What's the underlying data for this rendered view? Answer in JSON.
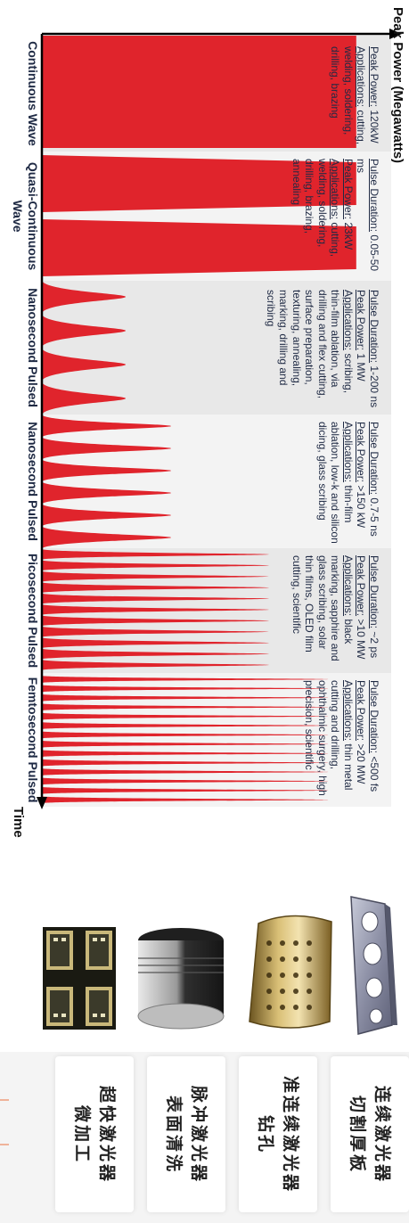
{
  "diagram": {
    "y_axis_title": "Peak Power (Megawatts)",
    "x_axis_title": "Time",
    "columns": [
      {
        "name": "Continuous Wave",
        "lines": [
          {
            "label": "Peak Power:",
            "value": " 120kW"
          },
          {
            "label": "Applications:",
            "value": " cutting, welding, soldering, drilling, brazing"
          }
        ]
      },
      {
        "name": "Quasi-Continuous Wave",
        "lines": [
          {
            "label": "Pulse Duration:",
            "value": " 0.05-50 ms"
          },
          {
            "label": "Peak Power:",
            "value": " 23kW"
          },
          {
            "label": "Applications:",
            "value": " cutting, welding, soldering, drilling, brazing, annealing"
          }
        ]
      },
      {
        "name": "Nanosecond Pulsed",
        "lines": [
          {
            "label": "Pulse Duration:",
            "value": " 1-200 ns"
          },
          {
            "label": "Peak Power:",
            "value": " 1 MW"
          },
          {
            "label": "Applications:",
            "value": " scribing, thin-film ablation, via drilling and flex cutting, surface preparation, texturing, annealing, marking, drilling and scribing"
          }
        ]
      },
      {
        "name": "Nanosecond Pulsed",
        "lines": [
          {
            "label": "Pulse Duration:",
            "value": " 0.7-5 ns"
          },
          {
            "label": "Peak Power:",
            "value": " >150 kW"
          },
          {
            "label": "Applications:",
            "value": " thin-film ablation, low-k and silicon dicing, glass scribing"
          }
        ]
      },
      {
        "name": "Picosecond Pulsed",
        "lines": [
          {
            "label": "Pulse Duration:",
            "value": " ~2 ps"
          },
          {
            "label": "Peak Power:",
            "value": " >10 MW"
          },
          {
            "label": "Applications:",
            "value": " black marking, sapphire and glass scribing, solar thin films, OLED film cutting, scientific"
          }
        ]
      },
      {
        "name": "Femtosecond Pulsed",
        "lines": [
          {
            "label": "Pulse Duration:",
            "value": " <500 fs"
          },
          {
            "label": "Peak Power:",
            "value": " >20 MW"
          },
          {
            "label": "Applications:",
            "value": " thin metal cutting and drilling, ophthalmic surgery, high precision, scientific"
          }
        ]
      }
    ],
    "pulse_color": "#e0242c",
    "panel_colors": [
      "#e8e8e8",
      "#f3f3f3"
    ],
    "relative_peaks": [
      0.9,
      0.9,
      0.24,
      0.37,
      0.65,
      0.82
    ]
  },
  "applications": [
    {
      "caption": "连续激光器\n切割厚板",
      "image": "metal-plate-photo"
    },
    {
      "caption": "准连续激光器\n钻孔",
      "image": "drilled-cylinder-photo"
    },
    {
      "caption": "脉冲激光器\n表面清洗",
      "image": "piston-photo"
    },
    {
      "caption": "超快激光器\n微加工",
      "image": "microchip-photo"
    }
  ],
  "colors": {
    "text": "#1f2a44",
    "accent_marks": "#f0b39a"
  }
}
